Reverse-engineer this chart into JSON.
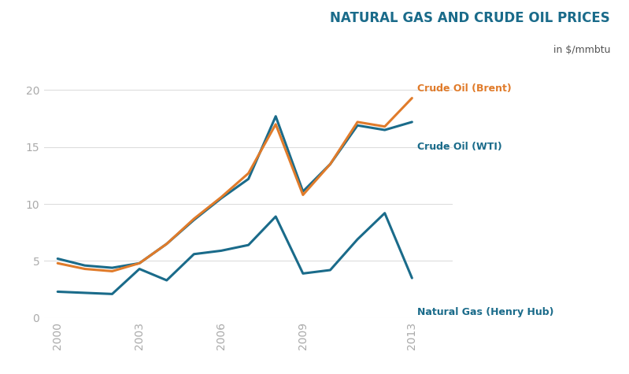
{
  "title": "NATURAL GAS AND CRUDE OIL PRICES",
  "subtitle": "in $/mmbtu",
  "years": [
    2000,
    2001,
    2002,
    2003,
    2004,
    2005,
    2006,
    2007,
    2008,
    2009,
    2010,
    2011,
    2012,
    2013
  ],
  "crude_oil_brent": [
    4.8,
    4.3,
    4.1,
    4.8,
    6.5,
    8.7,
    10.6,
    12.7,
    17.0,
    10.8,
    13.5,
    17.2,
    16.8,
    19.3
  ],
  "crude_oil_wti": [
    5.2,
    4.6,
    4.4,
    4.8,
    6.5,
    8.6,
    10.5,
    12.2,
    17.7,
    11.1,
    13.5,
    16.9,
    16.5,
    17.2
  ],
  "natural_gas": [
    2.3,
    2.2,
    2.1,
    4.3,
    3.3,
    5.6,
    5.9,
    6.4,
    8.9,
    3.9,
    4.2,
    6.9,
    9.2,
    3.5
  ],
  "color_brent": "#e07b2a",
  "color_wti": "#1a6b8a",
  "color_gas": "#1a6b8a",
  "ylim": [
    0,
    22
  ],
  "yticks": [
    0,
    5,
    10,
    15,
    20
  ],
  "xticks": [
    2000,
    2003,
    2006,
    2009,
    2013
  ],
  "label_brent": "Crude Oil (Brent)",
  "label_wti": "Crude Oil (WTI)",
  "label_gas": "Natural Gas (Henry Hub)",
  "background_color": "#ffffff",
  "title_color": "#1a6b8a",
  "subtitle_color": "#555555",
  "tick_color": "#aaaaaa",
  "grid_color": "#dddddd"
}
